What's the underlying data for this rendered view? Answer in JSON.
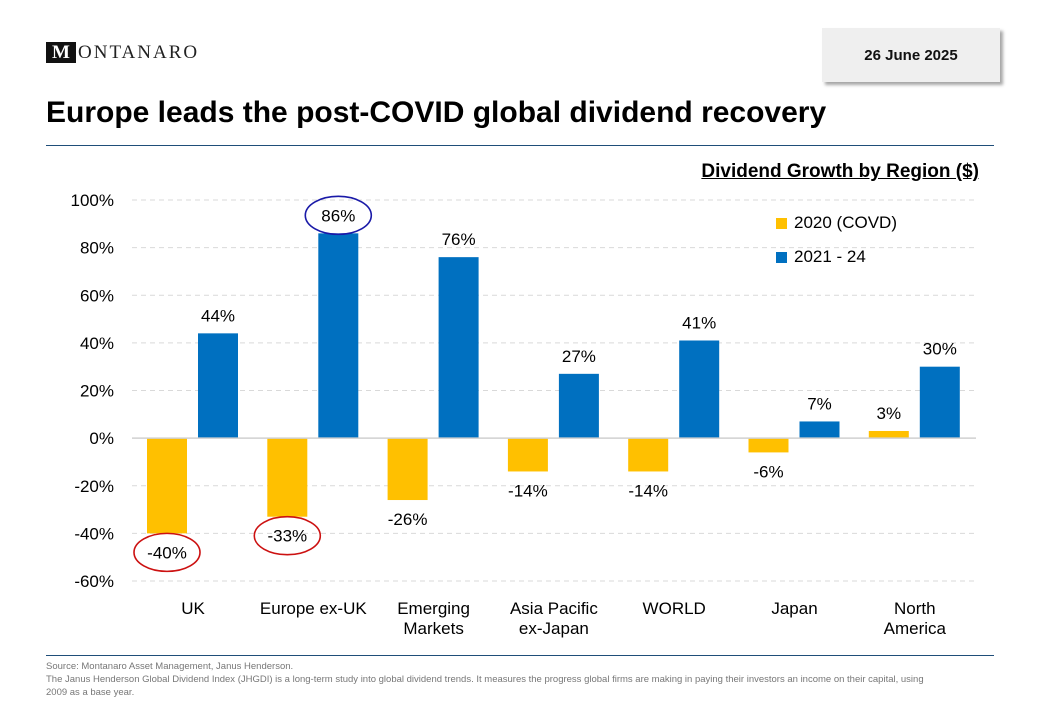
{
  "header": {
    "logo_letter": "M",
    "logo_rest": "ONTANARO",
    "date": "26 June 2025",
    "title": "Europe leads the post-COVID global dividend recovery"
  },
  "chart_data": {
    "type": "bar",
    "title": "Dividend Growth by Region ($)",
    "categories": [
      [
        "UK"
      ],
      [
        "Europe ex-UK"
      ],
      [
        "Emerging",
        "Markets"
      ],
      [
        "Asia Pacific",
        "ex-Japan"
      ],
      [
        "WORLD"
      ],
      [
        "Japan"
      ],
      [
        "North",
        "America"
      ]
    ],
    "series": [
      {
        "name": "2020 (COVD)",
        "color": "#FFC000",
        "values": [
          -40,
          -33,
          -26,
          -14,
          -14,
          -6,
          3
        ]
      },
      {
        "name": "2021 - 24",
        "color": "#0070C0",
        "values": [
          44,
          86,
          76,
          27,
          41,
          7,
          30
        ]
      }
    ],
    "value_labels": [
      [
        "-40%",
        "-33%",
        "-26%",
        "-14%",
        "-14%",
        "-6%",
        "3%"
      ],
      [
        "44%",
        "86%",
        "76%",
        "27%",
        "41%",
        "7%",
        "30%"
      ]
    ],
    "ylim": [
      -60,
      100
    ],
    "yticks": [
      100,
      80,
      60,
      40,
      20,
      0,
      -20,
      -40,
      -60
    ],
    "ytick_labels": [
      "100%",
      "80%",
      "60%",
      "40%",
      "20%",
      "0%",
      "-20%",
      "-40%",
      "-60%"
    ],
    "grid": true,
    "legend_position": "top-right",
    "highlights": [
      {
        "series": 1,
        "index": 1,
        "color": "#1a1aa8"
      },
      {
        "series": 0,
        "index": 0,
        "color": "#cc1111"
      },
      {
        "series": 0,
        "index": 1,
        "color": "#cc1111"
      }
    ]
  },
  "footer": {
    "source": "Source: Montanaro Asset Management, Janus Henderson.",
    "note": "The Janus Henderson Global Dividend Index (JHGDI) is a long-term study into global dividend trends. It measures the progress global firms are making in paying their investors an income on their capital, using 2009 as a base year."
  }
}
